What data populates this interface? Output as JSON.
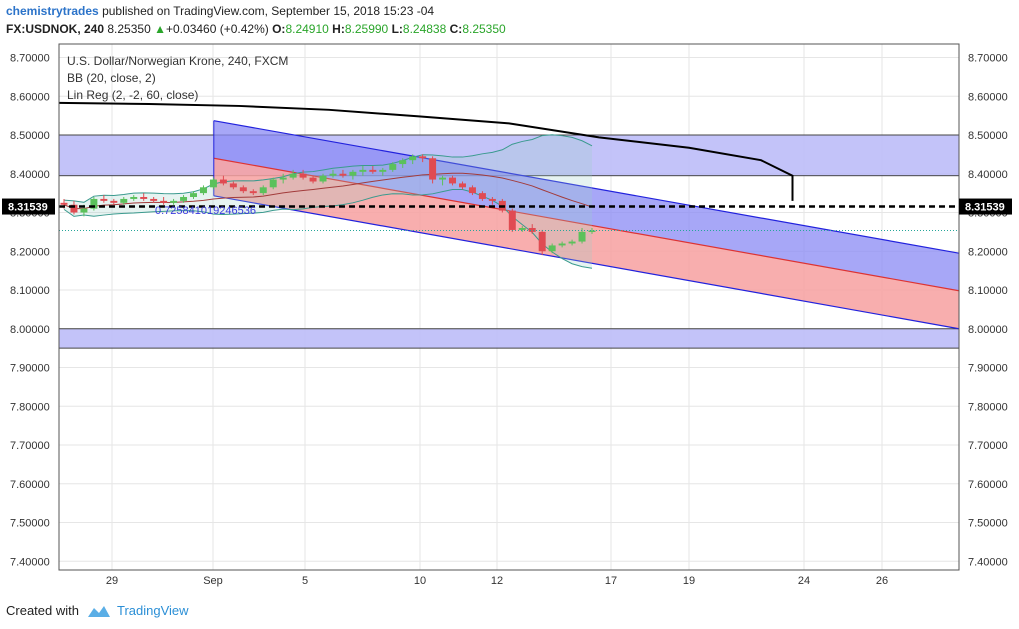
{
  "header": {
    "author": "chemistrytrades",
    "published_text": "published on TradingView.com, September 15, 2018 15:23 -04",
    "symbol": "FX:USDNOK, 240",
    "last": "8.25350",
    "change_arrow": "▲",
    "change": "+0.03460 (+0.42%)",
    "o_label": "O:",
    "o": "8.24910",
    "h_label": "H:",
    "h": "8.25990",
    "l_label": "L:",
    "l": "8.24838",
    "c_label": "C:",
    "c": "8.25350"
  },
  "legend": {
    "title": "U.S. Dollar/Norwegian Krone, 240, FXCM",
    "bb": "BB (20, close, 2)",
    "linreg": "Lin Reg (2, -2, 60, close)",
    "linreg_value": "0.725841019246536"
  },
  "footer": {
    "created_with": "Created with",
    "brand": "TradingView"
  },
  "colors": {
    "up": "#26a69a",
    "up_candle": "#5bc15b",
    "down_candle": "#e04b52",
    "channel_blue": "#2222dd",
    "channel_red": "#dd3333",
    "zone_fill": "#b8b8f8",
    "black_line": "#000000",
    "bb_line": "#3a9a8e",
    "bb_mid": "#a23b3b"
  },
  "chart_data": {
    "type": "candlestick",
    "y_tick_labels": [
      "8.70000",
      "8.60000",
      "8.50000",
      "8.40000",
      "8.30000",
      "8.20000",
      "8.10000",
      "8.00000",
      "7.90000",
      "7.80000",
      "7.70000",
      "7.60000",
      "7.50000",
      "7.40000"
    ],
    "ylim": [
      7.39,
      8.725
    ],
    "x_tick_labels": [
      "29",
      "Sep",
      "5",
      "10",
      "12",
      "17",
      "19",
      "24",
      "26"
    ],
    "price_marker": "8.31539",
    "price_marker_value": 8.31539,
    "last_price_value": 8.2535,
    "zones": [
      {
        "from": 8.395,
        "to": 8.5
      },
      {
        "from": 7.95,
        "to": 8.0
      }
    ],
    "regression_channel": {
      "start_x": 0.172,
      "end_x": 1.0,
      "upper_start": 8.537,
      "upper_end": 8.195,
      "mid_start": 8.44,
      "mid_end": 8.098,
      "lower_start": 8.343,
      "lower_end": 8.0
    },
    "black_curve": [
      [
        0.0,
        8.583
      ],
      [
        0.1,
        8.58
      ],
      [
        0.2,
        8.575
      ],
      [
        0.3,
        8.565
      ],
      [
        0.4,
        8.548
      ],
      [
        0.5,
        8.53
      ],
      [
        0.6,
        8.494
      ],
      [
        0.7,
        8.467
      ],
      [
        0.78,
        8.435
      ],
      [
        0.815,
        8.395
      ],
      [
        0.815,
        8.33
      ]
    ],
    "candles": [
      [
        8.325,
        8.335,
        8.31,
        8.32
      ],
      [
        8.32,
        8.33,
        8.295,
        8.3
      ],
      [
        8.3,
        8.32,
        8.29,
        8.31
      ],
      [
        8.31,
        8.34,
        8.305,
        8.335
      ],
      [
        8.335,
        8.345,
        8.325,
        8.33
      ],
      [
        8.33,
        8.335,
        8.32,
        8.325
      ],
      [
        8.325,
        8.34,
        8.32,
        8.335
      ],
      [
        8.335,
        8.345,
        8.33,
        8.34
      ],
      [
        8.34,
        8.35,
        8.33,
        8.335
      ],
      [
        8.335,
        8.34,
        8.325,
        8.33
      ],
      [
        8.33,
        8.34,
        8.32,
        8.325
      ],
      [
        8.325,
        8.335,
        8.32,
        8.33
      ],
      [
        8.33,
        8.345,
        8.325,
        8.34
      ],
      [
        8.34,
        8.355,
        8.335,
        8.35
      ],
      [
        8.35,
        8.37,
        8.345,
        8.365
      ],
      [
        8.365,
        8.39,
        8.36,
        8.385
      ],
      [
        8.385,
        8.395,
        8.37,
        8.375
      ],
      [
        8.375,
        8.38,
        8.36,
        8.365
      ],
      [
        8.365,
        8.37,
        8.35,
        8.355
      ],
      [
        8.355,
        8.36,
        8.345,
        8.35
      ],
      [
        8.35,
        8.37,
        8.345,
        8.365
      ],
      [
        8.365,
        8.39,
        8.36,
        8.385
      ],
      [
        8.385,
        8.4,
        8.375,
        8.39
      ],
      [
        8.39,
        8.41,
        8.385,
        8.4
      ],
      [
        8.4,
        8.41,
        8.385,
        8.39
      ],
      [
        8.39,
        8.395,
        8.375,
        8.38
      ],
      [
        8.38,
        8.4,
        8.375,
        8.395
      ],
      [
        8.395,
        8.41,
        8.39,
        8.4
      ],
      [
        8.4,
        8.41,
        8.39,
        8.395
      ],
      [
        8.395,
        8.41,
        8.385,
        8.405
      ],
      [
        8.405,
        8.42,
        8.395,
        8.41
      ],
      [
        8.41,
        8.42,
        8.4,
        8.405
      ],
      [
        8.405,
        8.415,
        8.395,
        8.41
      ],
      [
        8.41,
        8.43,
        8.405,
        8.425
      ],
      [
        8.425,
        8.44,
        8.415,
        8.435
      ],
      [
        8.435,
        8.45,
        8.425,
        8.445
      ],
      [
        8.445,
        8.45,
        8.43,
        8.44
      ],
      [
        8.44,
        8.445,
        8.375,
        8.385
      ],
      [
        8.385,
        8.395,
        8.37,
        8.39
      ],
      [
        8.39,
        8.395,
        8.37,
        8.375
      ],
      [
        8.375,
        8.38,
        8.36,
        8.365
      ],
      [
        8.365,
        8.37,
        8.345,
        8.35
      ],
      [
        8.35,
        8.355,
        8.33,
        8.335
      ],
      [
        8.335,
        8.34,
        8.32,
        8.33
      ],
      [
        8.33,
        8.335,
        8.3,
        8.305
      ],
      [
        8.305,
        8.31,
        8.25,
        8.255
      ],
      [
        8.255,
        8.265,
        8.25,
        8.26
      ],
      [
        8.26,
        8.27,
        8.245,
        8.25
      ],
      [
        8.25,
        8.255,
        8.19,
        8.2
      ],
      [
        8.2,
        8.22,
        8.195,
        8.215
      ],
      [
        8.215,
        8.225,
        8.21,
        8.22
      ],
      [
        8.22,
        8.23,
        8.215,
        8.225
      ],
      [
        8.225,
        8.26,
        8.22,
        8.25
      ],
      [
        8.25,
        8.26,
        8.245,
        8.2535
      ]
    ]
  }
}
